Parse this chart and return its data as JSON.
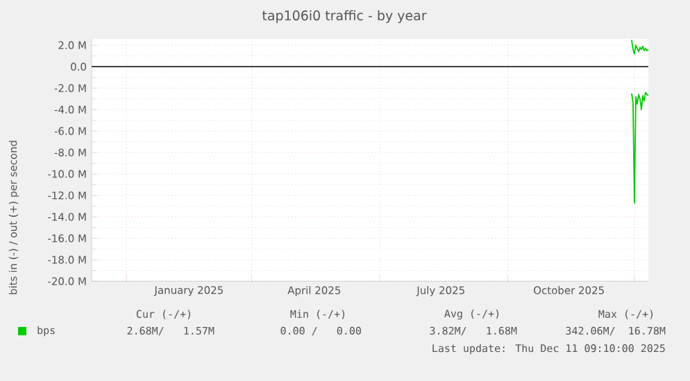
{
  "chart_data": {
    "type": "line",
    "title": "tap106i0 traffic - by year",
    "ylabel": "bits in (-) / out (+) per second",
    "xlim": [
      "2024-11-06",
      "2025-12-11"
    ],
    "xticks": [
      {
        "value": "2024-12-01",
        "label": null
      },
      {
        "value": "2025-01-15",
        "label": "January 2025"
      },
      {
        "value": "2025-03-01",
        "label": null
      },
      {
        "value": "2025-04-15",
        "label": "April 2025"
      },
      {
        "value": "2025-06-01",
        "label": null
      },
      {
        "value": "2025-07-15",
        "label": "July 2025"
      },
      {
        "value": "2025-09-01",
        "label": null
      },
      {
        "value": "2025-10-15",
        "label": "October 2025"
      },
      {
        "value": "2025-12-01",
        "label": null
      }
    ],
    "ylim": [
      -20,
      2.6
    ],
    "yticks": [
      {
        "value": 2,
        "label": "2.0 M"
      },
      {
        "value": 0,
        "label": "0.0"
      },
      {
        "value": -2,
        "label": "-2.0 M"
      },
      {
        "value": -4,
        "label": "-4.0 M"
      },
      {
        "value": -6,
        "label": "-6.0 M"
      },
      {
        "value": -8,
        "label": "-8.0 M"
      },
      {
        "value": -10,
        "label": "-10.0 M"
      },
      {
        "value": -12,
        "label": "-12.0 M"
      },
      {
        "value": -14,
        "label": "-14.0 M"
      },
      {
        "value": -16,
        "label": "-16.0 M"
      },
      {
        "value": -18,
        "label": "-18.0 M"
      },
      {
        "value": -20,
        "label": "-20.0 M"
      }
    ],
    "grid": true,
    "legend": "bottom",
    "ref_lines": [
      {
        "axis": "y",
        "value": 0,
        "color": "#000000"
      }
    ],
    "series": [
      {
        "name": "bps",
        "color": "#00cc00",
        "x": [
          "2025-11-29",
          "2025-11-30",
          "2025-12-01",
          "2025-12-02",
          "2025-12-03",
          "2025-12-04",
          "2025-12-05",
          "2025-12-06",
          "2025-12-07",
          "2025-12-08",
          "2025-12-09",
          "2025-12-10",
          "2025-12-11"
        ],
        "values": [
          -2.5,
          -3.4,
          -12.7,
          -2.8,
          -3.5,
          -2.6,
          -3.0,
          -4.0,
          -2.7,
          -3.2,
          -2.4,
          -2.6,
          -2.7
        ]
      },
      {
        "color": "#00cc00",
        "x": [
          "2025-11-29",
          "2025-11-30",
          "2025-12-01",
          "2025-12-02",
          "2025-12-03",
          "2025-12-04",
          "2025-12-05",
          "2025-12-06",
          "2025-12-07",
          "2025-12-08",
          "2025-12-09",
          "2025-12-10",
          "2025-12-11"
        ],
        "values": [
          2.5,
          1.6,
          1.2,
          2.0,
          1.7,
          1.4,
          1.8,
          1.6,
          1.9,
          1.5,
          1.7,
          1.5,
          1.6
        ]
      }
    ],
    "annotations": [
      "Cur (-/+)",
      "Min (-/+)",
      "Avg (-/+)",
      "Max (-/+)",
      "2.68M/   1.57M",
      "0.00 /   0.00",
      "3.82M/   1.68M",
      "342.06M/  16.78M",
      "Last update: Thu Dec 11 09:10:00 2025"
    ]
  }
}
